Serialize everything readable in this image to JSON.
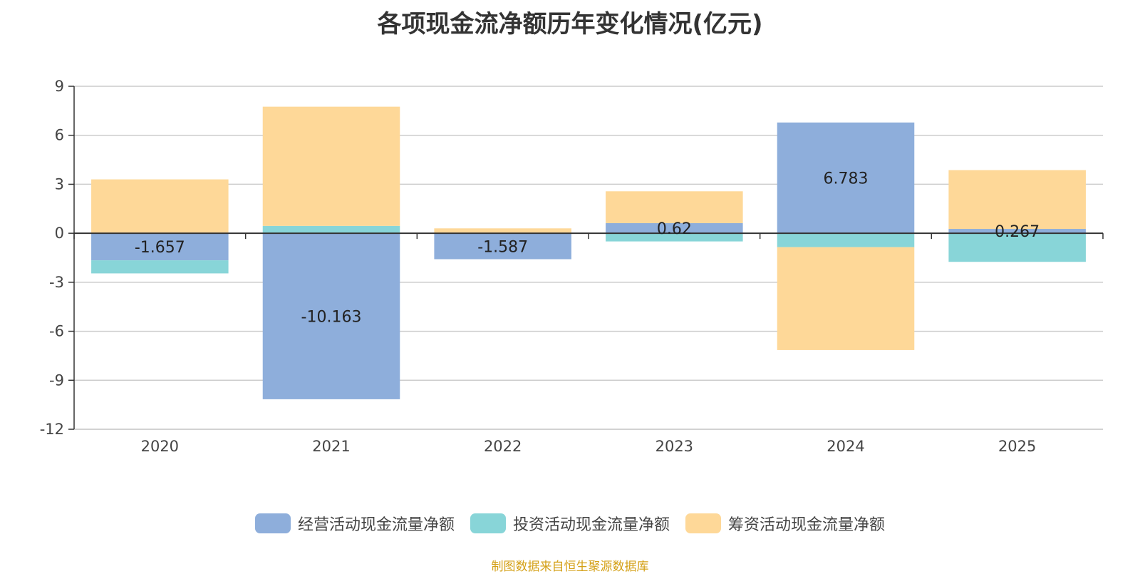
{
  "chart_data": {
    "type": "bar",
    "stacked": true,
    "title": "各项现金流净额历年变化情况(亿元)",
    "categories": [
      "2020",
      "2021",
      "2022",
      "2023",
      "2024",
      "2025"
    ],
    "yticks": [
      "9",
      "6",
      "3",
      "0",
      "-3",
      "-6",
      "-9",
      "-12"
    ],
    "ylim": [
      -12,
      9
    ],
    "xlabel": "",
    "ylabel": "",
    "grid": true,
    "legend_position": "bottom",
    "series": [
      {
        "name": "经营活动现金流量净额",
        "color": "#8eaedb",
        "values": [
          -1.657,
          -10.163,
          -1.587,
          0.62,
          6.783,
          0.267
        ],
        "labels": [
          "-1.657",
          "-10.163",
          "-1.587",
          "0.62",
          "6.783",
          "0.267"
        ]
      },
      {
        "name": "投资活动现金流量净额",
        "color": "#88d5d8",
        "values": [
          -0.8,
          0.45,
          0.0,
          -0.5,
          -0.85,
          -1.75
        ],
        "labels": null
      },
      {
        "name": "筹资活动现金流量净额",
        "color": "#fed898",
        "values": [
          3.3,
          7.3,
          0.3,
          1.95,
          -6.3,
          3.6
        ],
        "labels": null
      }
    ]
  },
  "source": "制图数据来自恒生聚源数据库"
}
